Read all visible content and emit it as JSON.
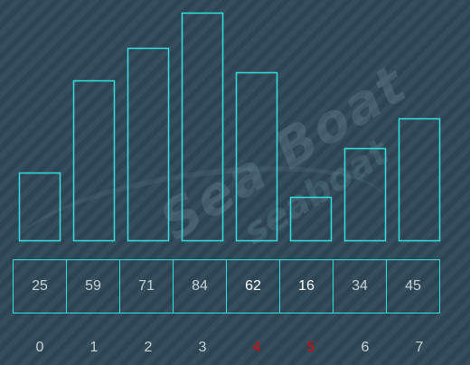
{
  "array": {
    "items": [
      {
        "index": "0",
        "value": "25",
        "highlight": false
      },
      {
        "index": "1",
        "value": "59",
        "highlight": false
      },
      {
        "index": "2",
        "value": "71",
        "highlight": false
      },
      {
        "index": "3",
        "value": "84",
        "highlight": false
      },
      {
        "index": "4",
        "value": "62",
        "highlight": true
      },
      {
        "index": "5",
        "value": "16",
        "highlight": true
      },
      {
        "index": "6",
        "value": "34",
        "highlight": false
      },
      {
        "index": "7",
        "value": "45",
        "highlight": false
      }
    ]
  },
  "colors": {
    "bar_stroke": "#33e0e0",
    "highlight_index": "#e00000",
    "highlight_value": "#ffffff",
    "normal_text": "#c8d2d6"
  },
  "watermark": {
    "main": "Sea Boat",
    "sub": "seaboat"
  }
}
